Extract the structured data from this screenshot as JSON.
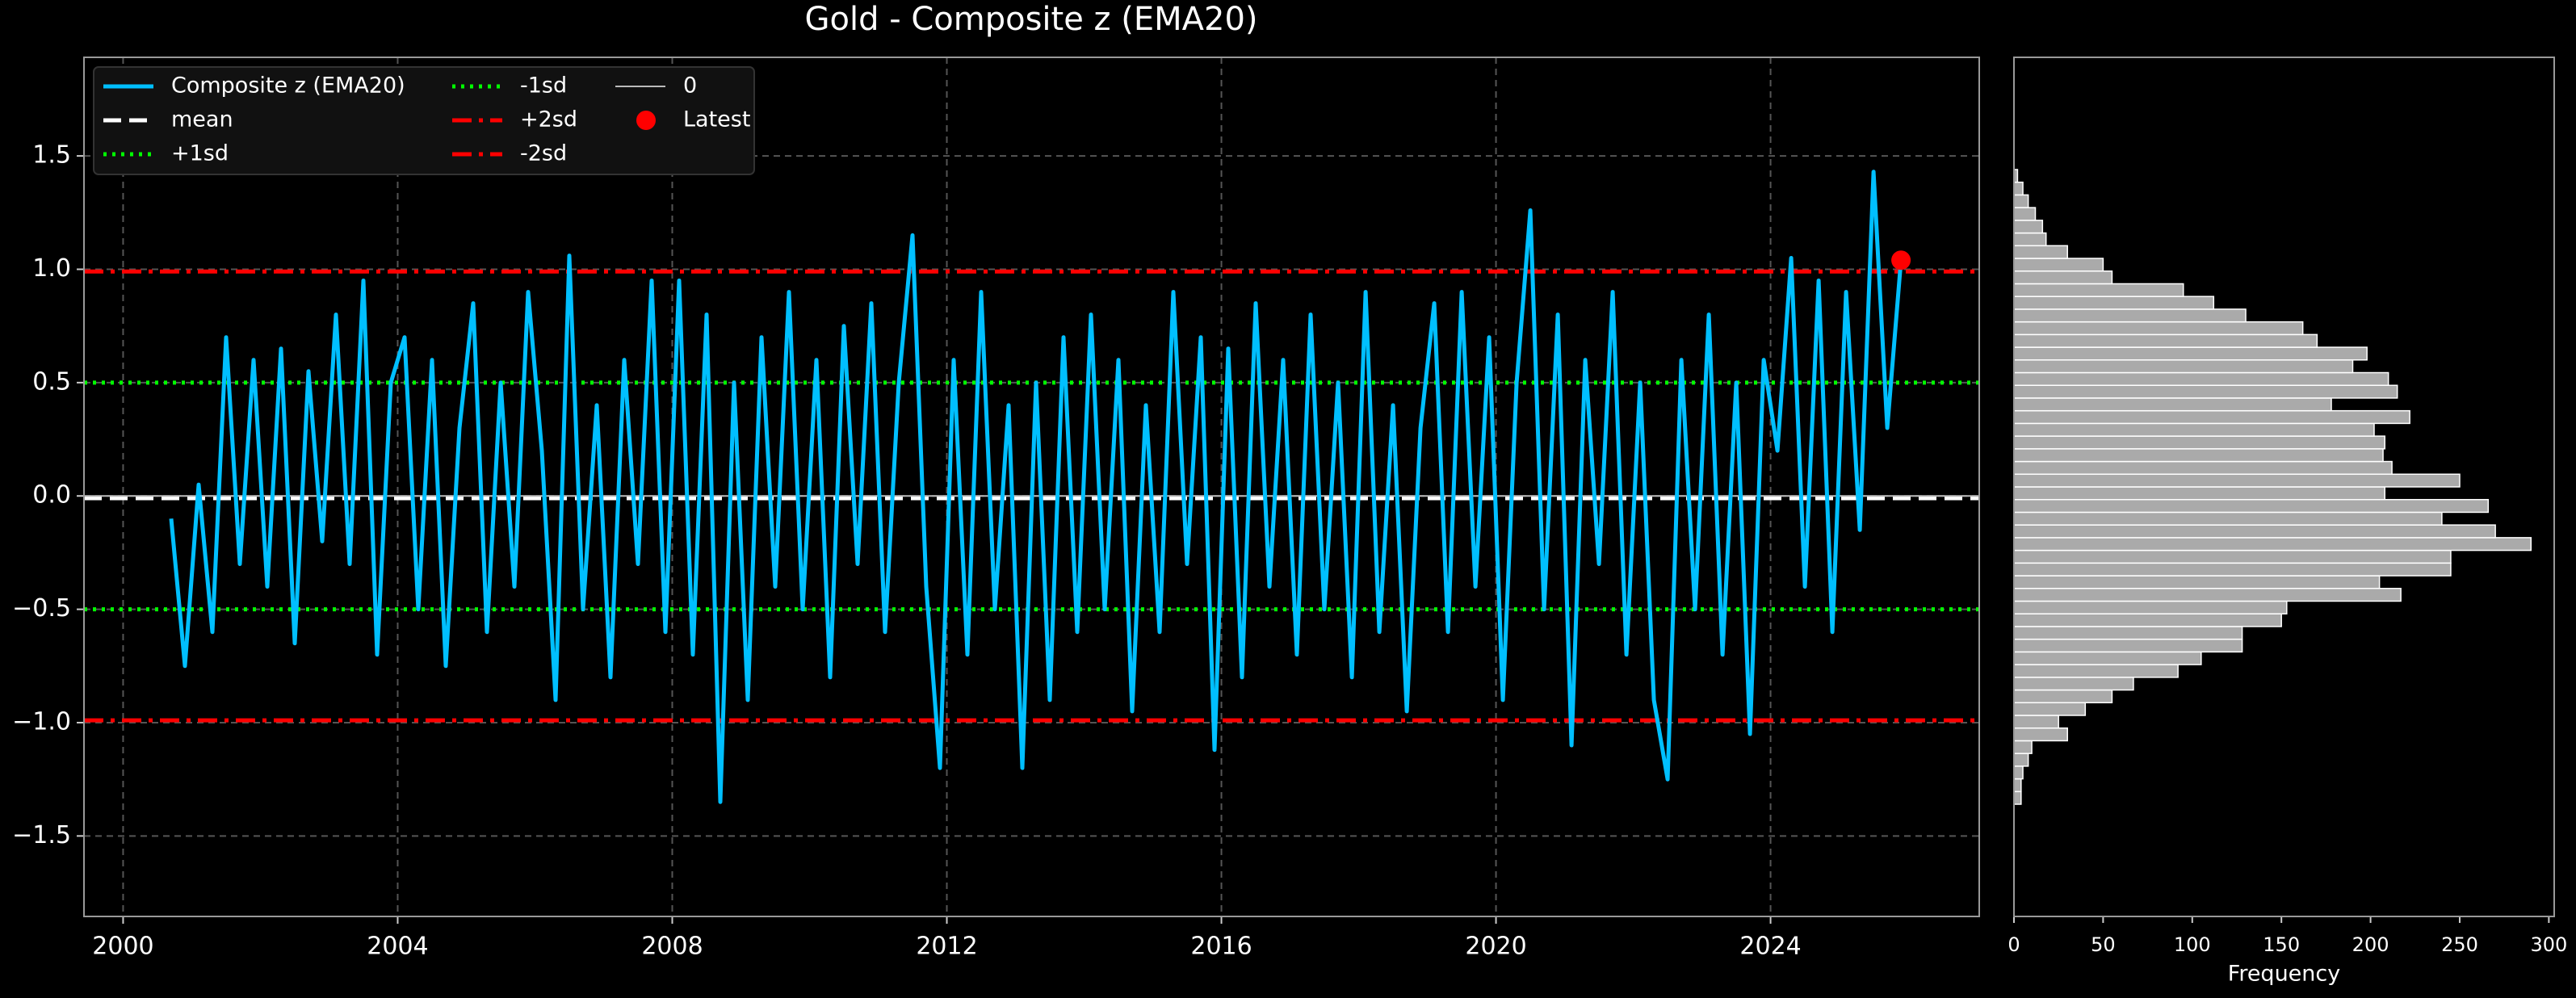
{
  "chart_data": [
    {
      "type": "line",
      "title": "Gold - Composite z (EMA20)",
      "x": [
        2000.7,
        2000.9,
        2001.1,
        2001.3,
        2001.5,
        2001.7,
        2001.9,
        2002.1,
        2002.3,
        2002.5,
        2002.7,
        2002.9,
        2003.1,
        2003.3,
        2003.5,
        2003.7,
        2003.9,
        2004.1,
        2004.3,
        2004.5,
        2004.7,
        2004.9,
        2005.1,
        2005.3,
        2005.5,
        2005.7,
        2005.9,
        2006.1,
        2006.3,
        2006.5,
        2006.7,
        2006.9,
        2007.1,
        2007.3,
        2007.5,
        2007.7,
        2007.9,
        2008.1,
        2008.3,
        2008.5,
        2008.7,
        2008.9,
        2009.1,
        2009.3,
        2009.5,
        2009.7,
        2009.9,
        2010.1,
        2010.3,
        2010.5,
        2010.7,
        2010.9,
        2011.1,
        2011.3,
        2011.5,
        2011.7,
        2011.9,
        2012.1,
        2012.3,
        2012.5,
        2012.7,
        2012.9,
        2013.1,
        2013.3,
        2013.5,
        2013.7,
        2013.9,
        2014.1,
        2014.3,
        2014.5,
        2014.7,
        2014.9,
        2015.1,
        2015.3,
        2015.5,
        2015.7,
        2015.9,
        2016.1,
        2016.3,
        2016.5,
        2016.7,
        2016.9,
        2017.1,
        2017.3,
        2017.5,
        2017.7,
        2017.9,
        2018.1,
        2018.3,
        2018.5,
        2018.7,
        2018.9,
        2019.1,
        2019.3,
        2019.5,
        2019.7,
        2019.9,
        2020.1,
        2020.3,
        2020.5,
        2020.7,
        2020.9,
        2021.1,
        2021.3,
        2021.5,
        2021.7,
        2021.9,
        2022.1,
        2022.3,
        2022.5,
        2022.7,
        2022.9,
        2023.1,
        2023.3,
        2023.5,
        2023.7,
        2023.9,
        2024.1,
        2024.3,
        2024.5,
        2024.7,
        2024.9,
        2025.1,
        2025.3,
        2025.5,
        2025.7,
        2025.9
      ],
      "series": [
        {
          "name": "Composite z (EMA20)",
          "color": "#00bfff",
          "values": [
            -0.1,
            -0.75,
            0.05,
            -0.6,
            0.7,
            -0.3,
            0.6,
            -0.4,
            0.65,
            -0.65,
            0.55,
            -0.2,
            0.8,
            -0.3,
            0.95,
            -0.7,
            0.5,
            0.7,
            -0.5,
            0.6,
            -0.75,
            0.3,
            0.85,
            -0.6,
            0.5,
            -0.4,
            0.9,
            0.2,
            -0.9,
            1.06,
            -0.5,
            0.4,
            -0.8,
            0.6,
            -0.3,
            0.95,
            -0.6,
            0.95,
            -0.7,
            0.8,
            -1.35,
            0.5,
            -0.9,
            0.7,
            -0.4,
            0.9,
            -0.5,
            0.6,
            -0.8,
            0.75,
            -0.3,
            0.85,
            -0.6,
            0.5,
            1.15,
            -0.4,
            -1.2,
            0.6,
            -0.7,
            0.9,
            -0.5,
            0.4,
            -1.2,
            0.5,
            -0.9,
            0.7,
            -0.6,
            0.8,
            -0.5,
            0.6,
            -0.95,
            0.4,
            -0.6,
            0.9,
            -0.3,
            0.7,
            -1.12,
            0.65,
            -0.8,
            0.85,
            -0.4,
            0.6,
            -0.7,
            0.8,
            -0.5,
            0.5,
            -0.8,
            0.9,
            -0.6,
            0.4,
            -0.95,
            0.3,
            0.85,
            -0.6,
            0.9,
            -0.4,
            0.7,
            -0.9,
            0.5,
            1.26,
            -0.5,
            0.8,
            -1.1,
            0.6,
            -0.3,
            0.9,
            -0.7,
            0.5,
            -0.9,
            -1.25,
            0.6,
            -0.5,
            0.8,
            -0.7,
            0.5,
            -1.05,
            0.6,
            0.2,
            1.05,
            -0.4,
            0.95,
            -0.6,
            0.9,
            -0.15,
            1.43,
            0.3,
            1.04
          ]
        }
      ],
      "hlines": [
        {
          "name": "mean",
          "value": -0.01,
          "color": "#ffffff",
          "style": "dashed"
        },
        {
          "name": "+1sd",
          "value": 0.5,
          "color": "#00ff00",
          "style": "dotted"
        },
        {
          "name": "-1sd",
          "value": -0.5,
          "color": "#00ff00",
          "style": "dotted"
        },
        {
          "name": "+2sd",
          "value": 0.99,
          "color": "#ff0000",
          "style": "dashdot"
        },
        {
          "name": "-2sd",
          "value": -0.99,
          "color": "#ff0000",
          "style": "dashdot"
        },
        {
          "name": "0",
          "value": 0,
          "color": "#bbbbbb",
          "style": "solid"
        }
      ],
      "latest": {
        "name": "Latest",
        "x": 2025.9,
        "y": 1.04,
        "color": "#ff0000"
      },
      "xlim": [
        1999.43,
        2027.04
      ],
      "ylim": [
        -1.855,
        1.935
      ],
      "xticks": [
        2000,
        2004,
        2008,
        2012,
        2016,
        2020,
        2024
      ],
      "yticks": [
        {
          "value": -1.5,
          "label": "−1.5"
        },
        {
          "value": -1,
          "label": "−1.0"
        },
        {
          "value": -0.5,
          "label": "−0.5"
        },
        {
          "value": 0,
          "label": "0.0"
        },
        0.5,
        {
          "value": 1,
          "label": "1.0"
        },
        1.5
      ],
      "grid": true,
      "legend": "upper left"
    },
    {
      "type": "histogram",
      "orientation": "horizontal",
      "bins": [
        -1.36,
        -1.304,
        -1.248,
        -1.192,
        -1.136,
        -1.08,
        -1.024,
        -0.968,
        -0.912,
        -0.856,
        -0.8,
        -0.744,
        -0.688,
        -0.632,
        -0.576,
        -0.52,
        -0.464,
        -0.408,
        -0.352,
        -0.296,
        -0.24,
        -0.184,
        -0.128,
        -0.072,
        -0.016,
        0.04,
        0.096,
        0.152,
        0.208,
        0.264,
        0.32,
        0.376,
        0.432,
        0.488,
        0.544,
        0.6,
        0.656,
        0.712,
        0.768,
        0.824,
        0.88,
        0.936,
        0.992,
        1.048,
        1.104,
        1.16,
        1.216,
        1.272,
        1.328,
        1.384,
        1.44
      ],
      "counts": [
        4,
        4,
        5,
        8,
        10,
        30,
        25,
        40,
        55,
        67,
        92,
        105,
        128,
        128,
        150,
        153,
        217,
        205,
        245,
        245,
        290,
        270,
        240,
        266,
        208,
        250,
        212,
        207,
        208,
        202,
        222,
        178,
        215,
        210,
        190,
        198,
        170,
        162,
        130,
        112,
        95,
        55,
        50,
        30,
        18,
        16,
        12,
        8,
        5,
        2
      ],
      "color": "#aaaaaa",
      "xlim": [
        0,
        303
      ],
      "ylim": [
        -1.855,
        1.935
      ],
      "xticks": [
        0,
        50,
        100,
        150,
        200,
        250,
        300
      ],
      "xlabel": "Frequency"
    }
  ]
}
